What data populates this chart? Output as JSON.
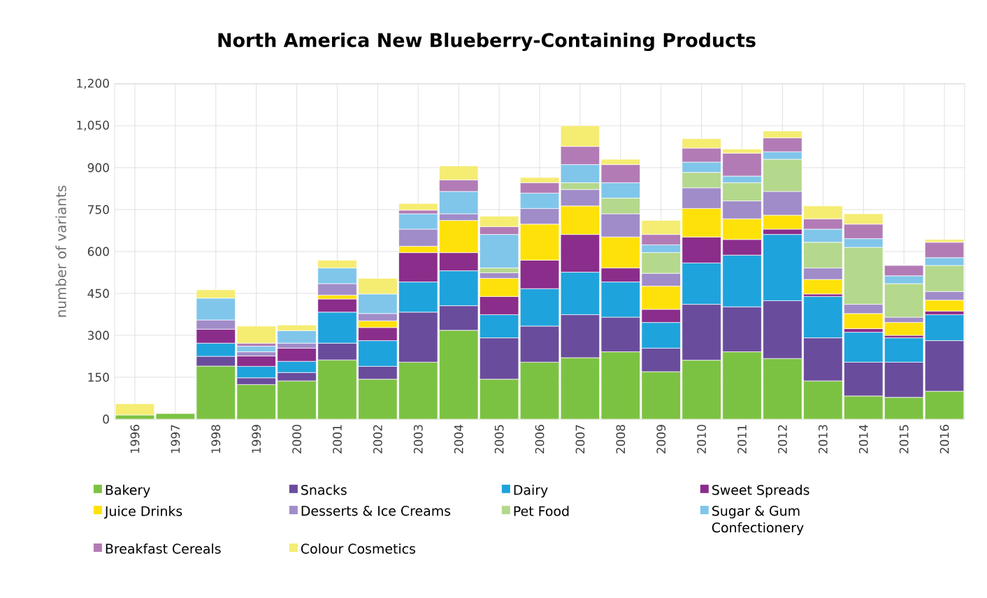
{
  "chart_data": {
    "type": "bar",
    "stacked": true,
    "title": "North America New Blueberry-Containing Products",
    "ylabel": "number of variants",
    "categories": [
      "1996",
      "1997",
      "1998",
      "1999",
      "2000",
      "2001",
      "2002",
      "2003",
      "2004",
      "2005",
      "2006",
      "2007",
      "2008",
      "2009",
      "2010",
      "2011",
      "2012",
      "2013",
      "2014",
      "2015",
      "2016"
    ],
    "series": [
      {
        "name": "Bakery",
        "color": "#7cc242",
        "values": [
          15,
          20,
          190,
          124,
          137,
          212,
          143,
          204,
          318,
          143,
          204,
          220,
          241,
          170,
          211,
          241,
          217,
          137,
          83,
          78,
          100
        ]
      },
      {
        "name": "Snacks",
        "color": "#6a4c9c",
        "values": [
          null,
          null,
          35,
          24,
          30,
          60,
          46,
          179,
          88,
          148,
          129,
          154,
          124,
          84,
          200,
          161,
          207,
          154,
          121,
          126,
          181
        ]
      },
      {
        "name": "Dairy",
        "color": "#1fa3dc",
        "values": [
          null,
          null,
          47,
          41,
          40,
          111,
          92,
          108,
          125,
          83,
          134,
          152,
          126,
          92,
          148,
          185,
          237,
          148,
          107,
          87,
          93
        ]
      },
      {
        "name": "Sweet Spreads",
        "color": "#8b2d8b",
        "values": [
          null,
          null,
          50,
          37,
          47,
          47,
          47,
          105,
          65,
          65,
          102,
          135,
          50,
          47,
          93,
          56,
          19,
          9,
          13,
          9,
          13
        ]
      },
      {
        "name": "Juice Drinks",
        "color": "#ffe10a",
        "values": [
          null,
          null,
          null,
          null,
          null,
          14,
          24,
          23,
          115,
          65,
          129,
          102,
          111,
          83,
          102,
          74,
          50,
          52,
          54,
          46,
          39
        ]
      },
      {
        "name": "Desserts & Ice Creams",
        "color": "#a08cc8",
        "values": [
          null,
          null,
          33,
          15,
          18,
          41,
          26,
          61,
          24,
          20,
          56,
          59,
          83,
          46,
          74,
          64,
          85,
          41,
          33,
          19,
          31
        ]
      },
      {
        "name": "Pet Food",
        "color": "#b4d88c",
        "values": [
          null,
          null,
          null,
          null,
          null,
          null,
          null,
          null,
          null,
          17,
          null,
          24,
          56,
          74,
          55,
          65,
          115,
          92,
          204,
          120,
          93
        ]
      },
      {
        "name": "Sugar & Gum Confectionery",
        "color": "#80c6ea",
        "values": [
          null,
          null,
          78,
          20,
          45,
          56,
          70,
          55,
          80,
          120,
          55,
          65,
          55,
          28,
          37,
          24,
          27,
          47,
          31,
          28,
          28
        ]
      },
      {
        "name": "Breakfast Cereals",
        "color": "#b27bb5",
        "values": [
          null,
          null,
          null,
          11,
          null,
          null,
          null,
          13,
          41,
          28,
          37,
          65,
          65,
          37,
          50,
          82,
          50,
          37,
          52,
          37,
          55
        ]
      },
      {
        "name": "Colour Cosmetics",
        "color": "#f5ec72",
        "values": [
          40,
          null,
          30,
          61,
          20,
          28,
          56,
          24,
          50,
          37,
          19,
          74,
          19,
          50,
          34,
          15,
          24,
          46,
          37,
          null,
          10
        ]
      }
    ],
    "ylim": [
      0,
      1200
    ],
    "yticks": [
      0,
      150,
      300,
      450,
      600,
      750,
      900,
      {
        "value": 1050,
        "label": "1,050"
      },
      {
        "value": 1200,
        "label": "1,200"
      }
    ],
    "grid": true,
    "legend": "bottom"
  }
}
